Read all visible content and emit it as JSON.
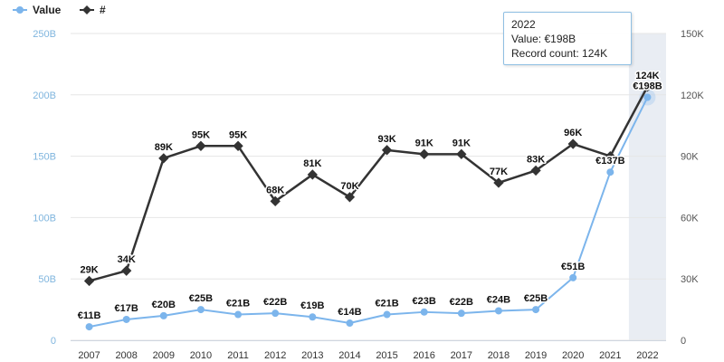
{
  "legend": {
    "items": [
      {
        "label": "Value",
        "color": "#7cb5ec"
      },
      {
        "label": "#",
        "color": "#333333"
      }
    ]
  },
  "tooltip": {
    "year": "2022",
    "value_line": "Value: €198B",
    "count_line": "Record count: 124K"
  },
  "chart_data": {
    "type": "line",
    "categories": [
      "2007",
      "2008",
      "2009",
      "2010",
      "2011",
      "2012",
      "2013",
      "2014",
      "2015",
      "2016",
      "2017",
      "2018",
      "2019",
      "2020",
      "2021",
      "2022"
    ],
    "series": [
      {
        "name": "Value",
        "axis": "left",
        "color": "#7cb5ec",
        "values": [
          11,
          17,
          20,
          25,
          21,
          22,
          19,
          14,
          21,
          23,
          22,
          24,
          25,
          51,
          137,
          198
        ],
        "labels": [
          "€11B",
          "€17B",
          "€20B",
          "€25B",
          "€21B",
          "€22B",
          "€19B",
          "€14B",
          "€21B",
          "€23B",
          "€22B",
          "€24B",
          "€25B",
          "€51B",
          "€137B",
          "€198B"
        ]
      },
      {
        "name": "#",
        "axis": "right",
        "color": "#333333",
        "values": [
          29,
          34,
          89,
          95,
          95,
          68,
          81,
          70,
          93,
          91,
          91,
          77,
          83,
          96,
          90,
          124
        ],
        "labels": [
          "29K",
          "34K",
          "89K",
          "95K",
          "95K",
          "68K",
          "81K",
          "70K",
          "93K",
          "91K",
          "91K",
          "77K",
          "83K",
          "96K",
          "",
          "124K"
        ]
      }
    ],
    "left_axis": {
      "ylim": [
        0,
        250
      ],
      "ticks": [
        0,
        50,
        100,
        150,
        200,
        250
      ],
      "tick_labels": [
        "0",
        "50B",
        "100B",
        "150B",
        "200B",
        "250B"
      ]
    },
    "right_axis": {
      "ylim": [
        0,
        150
      ],
      "ticks": [
        0,
        30,
        60,
        90,
        120,
        150
      ],
      "tick_labels": [
        "0",
        "30K",
        "60K",
        "90K",
        "120K",
        "150K"
      ]
    },
    "highlighted_category": "2022",
    "grid": true,
    "legend_position": "top-left"
  }
}
